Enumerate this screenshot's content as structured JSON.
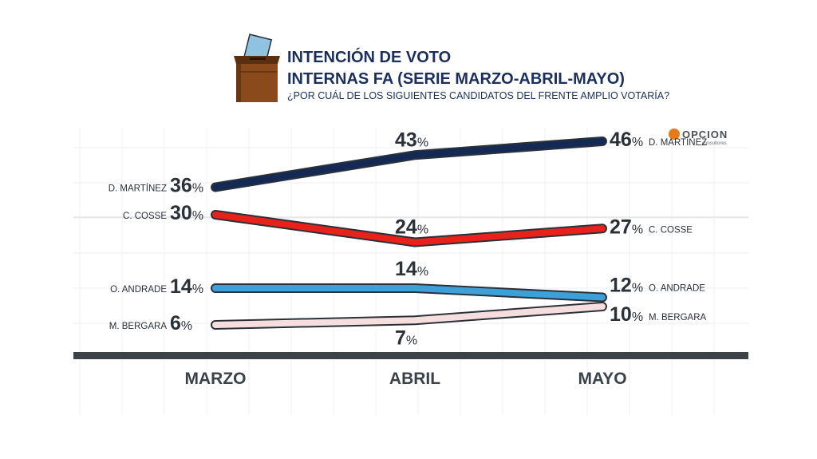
{
  "header": {
    "title_line1": "INTENCIÓN DE VOTO",
    "title_line2": "INTERNAS FA (SERIE MARZO-ABRIL-MAYO)",
    "question": "¿POR CUÁL DE LOS SIGUIENTES CANDIDATOS DEL FRENTE AMPLIO VOTARÍA?"
  },
  "icons": {
    "ballot": "ballot-box-icon"
  },
  "logo": {
    "name": "OPCION",
    "sub": "consultores"
  },
  "colors": {
    "background": "#ffffff",
    "grid": "#e9ebee",
    "axis": "#3c4248",
    "text": "#2b3138",
    "title": "#1a2f5c",
    "box": "#8b4a1b",
    "ballot": "#8fc3e0"
  },
  "chart_data": {
    "type": "line",
    "categories": [
      "MARZO",
      "ABRIL",
      "MAYO"
    ],
    "ylim": [
      0,
      50
    ],
    "grid": true,
    "value_suffix": "%",
    "series": [
      {
        "name": "D. MARTÍNEZ",
        "values": [
          36,
          43,
          46
        ],
        "color": "#142a55"
      },
      {
        "name": "C. COSSE",
        "values": [
          30,
          24,
          27
        ],
        "color": "#e8221b"
      },
      {
        "name": "O. ANDRADE",
        "values": [
          14,
          14,
          12
        ],
        "color": "#3da0d8"
      },
      {
        "name": "M. BERGARA",
        "values": [
          6,
          7,
          10
        ],
        "color": "#f7dede"
      }
    ]
  }
}
